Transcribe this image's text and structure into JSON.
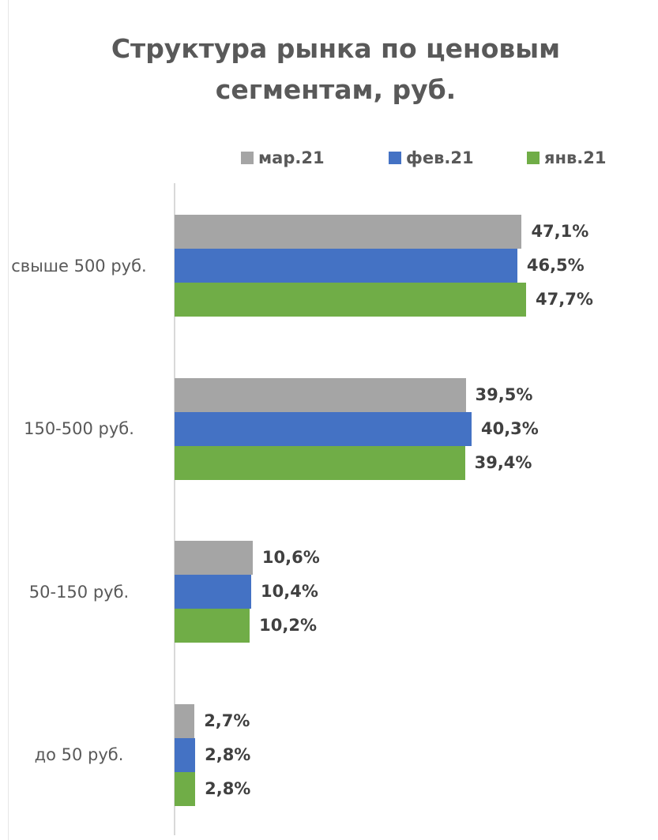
{
  "chart_data": {
    "type": "bar",
    "orientation": "horizontal",
    "title": "Структура рынка по ценовым сегментам, руб.",
    "categories": [
      "свыше 500 руб.",
      "150-500 руб.",
      "50-150 руб.",
      "до 50 руб."
    ],
    "series": [
      {
        "name": "мар.21",
        "color": "#a5a5a5",
        "values": [
          47.1,
          39.5,
          10.6,
          2.7
        ],
        "value_labels": [
          "47,1%",
          "39,5%",
          "10,6%",
          "2,7%"
        ]
      },
      {
        "name": "фев.21",
        "color": "#4472c4",
        "values": [
          46.5,
          40.3,
          10.4,
          2.8
        ],
        "value_labels": [
          "46,5%",
          "40,3%",
          "10,4%",
          "2,8%"
        ]
      },
      {
        "name": "янв.21",
        "color": "#70ad47",
        "values": [
          47.7,
          39.4,
          10.2,
          2.8
        ],
        "value_labels": [
          "47,7%",
          "39,4%",
          "10,2%",
          "2,8%"
        ]
      }
    ]
  }
}
